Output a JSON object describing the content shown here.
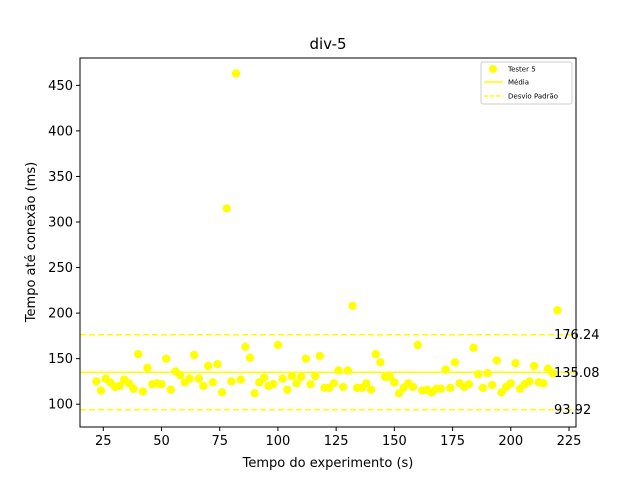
{
  "chart_data": {
    "type": "scatter",
    "title": "div-5",
    "xlabel": "Tempo do experimento (s)",
    "ylabel": "Tempo até conexão (ms)",
    "xlim": [
      15,
      228
    ],
    "ylim": [
      75,
      480
    ],
    "xticks": [
      25,
      50,
      75,
      100,
      125,
      150,
      175,
      200,
      225
    ],
    "yticks": [
      100,
      150,
      200,
      250,
      300,
      350,
      400,
      450
    ],
    "grid": false,
    "legend_position": "top-right",
    "series_color": "#ffff00",
    "legend": [
      "Tester 5",
      "Média",
      "Desvio Padrão"
    ],
    "mean": 135.08,
    "mean_label": "135.08",
    "std_upper": 176.24,
    "std_upper_label": "176.24",
    "std_lower": 93.92,
    "std_lower_label": "93.92",
    "series": [
      {
        "name": "Tester 5",
        "points": [
          [
            22,
            125
          ],
          [
            24,
            115
          ],
          [
            26,
            128
          ],
          [
            28,
            124
          ],
          [
            30,
            119
          ],
          [
            32,
            120
          ],
          [
            34,
            127
          ],
          [
            36,
            123
          ],
          [
            38,
            117
          ],
          [
            40,
            155
          ],
          [
            42,
            114
          ],
          [
            44,
            140
          ],
          [
            46,
            122
          ],
          [
            48,
            123
          ],
          [
            50,
            122
          ],
          [
            52,
            150
          ],
          [
            54,
            116
          ],
          [
            56,
            136
          ],
          [
            58,
            132
          ],
          [
            60,
            124
          ],
          [
            62,
            128
          ],
          [
            64,
            154
          ],
          [
            66,
            128
          ],
          [
            68,
            120
          ],
          [
            70,
            142
          ],
          [
            72,
            124
          ],
          [
            74,
            144
          ],
          [
            76,
            113
          ],
          [
            78,
            315
          ],
          [
            80,
            125
          ],
          [
            82,
            463
          ],
          [
            84,
            127
          ],
          [
            86,
            163
          ],
          [
            88,
            151
          ],
          [
            90,
            112
          ],
          [
            92,
            124
          ],
          [
            94,
            129
          ],
          [
            96,
            120
          ],
          [
            98,
            122
          ],
          [
            100,
            165
          ],
          [
            102,
            128
          ],
          [
            104,
            116
          ],
          [
            106,
            131
          ],
          [
            108,
            123
          ],
          [
            110,
            130
          ],
          [
            112,
            150
          ],
          [
            114,
            122
          ],
          [
            116,
            131
          ],
          [
            118,
            153
          ],
          [
            120,
            118
          ],
          [
            122,
            118
          ],
          [
            124,
            123
          ],
          [
            126,
            137
          ],
          [
            128,
            119
          ],
          [
            130,
            137
          ],
          [
            132,
            208
          ],
          [
            134,
            118
          ],
          [
            136,
            118
          ],
          [
            138,
            123
          ],
          [
            140,
            116
          ],
          [
            142,
            155
          ],
          [
            144,
            146
          ],
          [
            146,
            130
          ],
          [
            148,
            130
          ],
          [
            150,
            124
          ],
          [
            152,
            112
          ],
          [
            154,
            118
          ],
          [
            156,
            123
          ],
          [
            158,
            119
          ],
          [
            160,
            165
          ],
          [
            162,
            115
          ],
          [
            164,
            116
          ],
          [
            166,
            113
          ],
          [
            168,
            117
          ],
          [
            170,
            117
          ],
          [
            172,
            138
          ],
          [
            174,
            118
          ],
          [
            176,
            146
          ],
          [
            178,
            123
          ],
          [
            180,
            119
          ],
          [
            182,
            122
          ],
          [
            184,
            162
          ],
          [
            186,
            133
          ],
          [
            188,
            118
          ],
          [
            190,
            134
          ],
          [
            192,
            121
          ],
          [
            194,
            148
          ],
          [
            196,
            113
          ],
          [
            198,
            119
          ],
          [
            200,
            123
          ],
          [
            202,
            145
          ],
          [
            204,
            117
          ],
          [
            206,
            122
          ],
          [
            208,
            125
          ],
          [
            210,
            142
          ],
          [
            212,
            124
          ],
          [
            214,
            123
          ],
          [
            216,
            139
          ],
          [
            218,
            134
          ],
          [
            220,
            203
          ]
        ]
      }
    ]
  }
}
